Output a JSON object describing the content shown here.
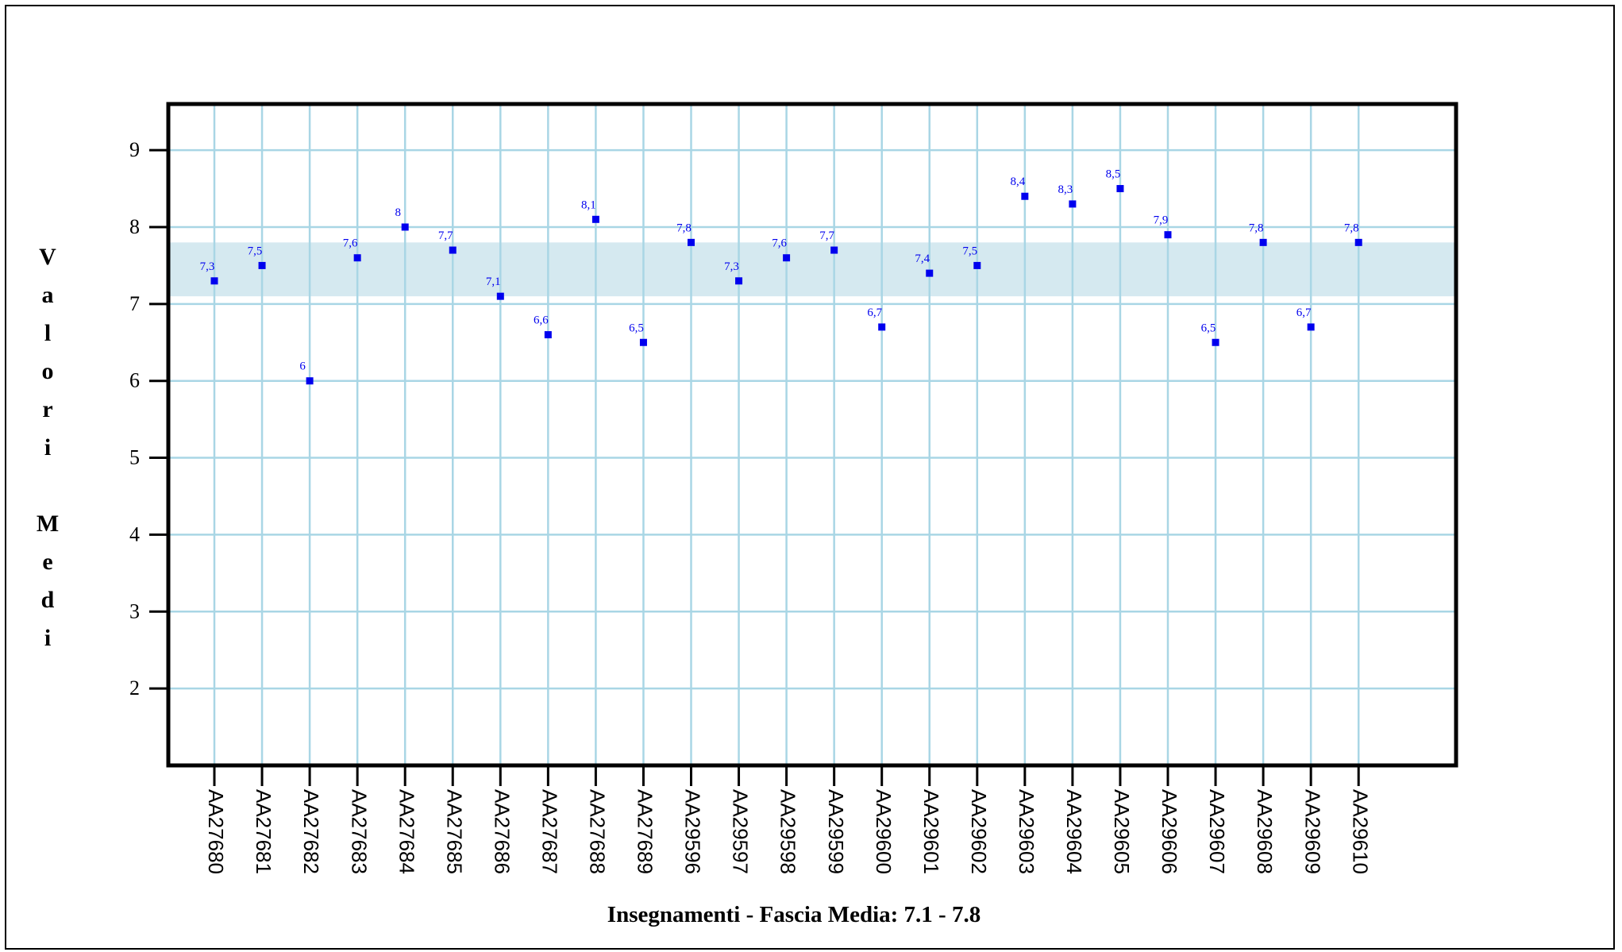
{
  "chart_data": {
    "type": "scatter",
    "categories": [
      "AA27680",
      "AA27681",
      "AA27682",
      "AA27683",
      "AA27684",
      "AA27685",
      "AA27686",
      "AA27687",
      "AA27688",
      "AA27689",
      "AA29596",
      "AA29597",
      "AA29598",
      "AA29599",
      "AA29600",
      "AA29601",
      "AA29602",
      "AA29603",
      "AA29604",
      "AA29605",
      "AA29606",
      "AA29607",
      "AA29608",
      "AA29609",
      "AA29610"
    ],
    "values": [
      7.3,
      7.5,
      6,
      7.6,
      8,
      7.7,
      7.1,
      6.6,
      8.1,
      6.5,
      7.8,
      7.3,
      7.6,
      7.7,
      6.7,
      7.4,
      7.5,
      8.4,
      8.3,
      8.5,
      7.9,
      6.5,
      7.8,
      6.7,
      7.8
    ],
    "value_labels": [
      "7,3",
      "7,5",
      "6",
      "7,6",
      "8",
      "7,7",
      "7,1",
      "6,6",
      "8,1",
      "6,5",
      "7,8",
      "7,3",
      "7,6",
      "7,7",
      "6,7",
      "7,4",
      "7,5",
      "8,4",
      "8,3",
      "8,5",
      "7,9",
      "6,5",
      "7,8",
      "6,7",
      "7,8"
    ],
    "y_ticks": [
      "2",
      "3",
      "4",
      "5",
      "6",
      "7",
      "8",
      "9"
    ],
    "ylim": [
      1,
      9.6
    ],
    "band": [
      7.1,
      7.8
    ],
    "xlabel": "Insegnamenti - Fascia Media: 7.1 - 7.8",
    "ylabel": "Valori Medi",
    "grid": true,
    "colors": {
      "marker": "#0000ee",
      "grid": "#a9d6e5",
      "band": "#d5e9f0",
      "frame": "#000000"
    }
  }
}
